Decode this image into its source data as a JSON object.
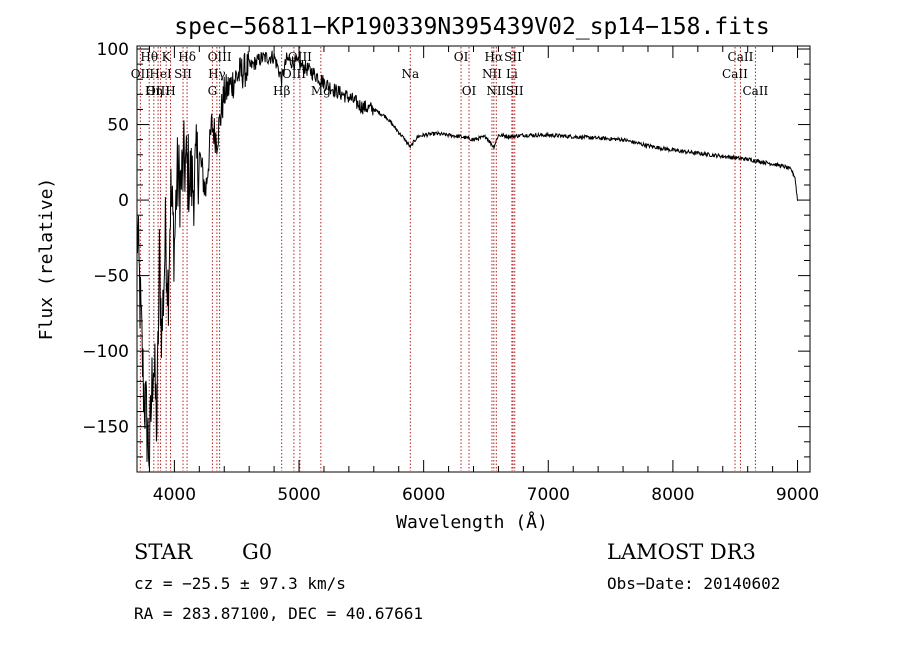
{
  "chart_data": {
    "type": "line",
    "title": "spec−56811−KP190339N395439V02_sp14−158.fits",
    "xlabel": "Wavelength (Å)",
    "ylabel": "Flux (relative)",
    "xlim": [
      3700,
      9100
    ],
    "ylim": [
      -180,
      102
    ],
    "xticks": [
      4000,
      5000,
      6000,
      7000,
      8000,
      9000
    ],
    "xtick_labels": [
      "4000",
      "5000",
      "6000",
      "7000",
      "8000",
      "9000"
    ],
    "yticks": [
      100,
      50,
      0,
      -50,
      -100,
      -150
    ],
    "ytick_labels": [
      "100",
      "50",
      "0",
      "−50",
      "−100",
      "−150"
    ],
    "grid": false,
    "series": [
      {
        "name": "flux",
        "x": [
          3700,
          3750,
          3800,
          3830,
          3860,
          3880,
          3900,
          3930,
          3950,
          3970,
          4000,
          4020,
          4050,
          4080,
          4100,
          4150,
          4200,
          4250,
          4300,
          4340,
          4400,
          4500,
          4600,
          4700,
          4800,
          4861,
          4900,
          5000,
          5100,
          5200,
          5300,
          5400,
          5500,
          5600,
          5700,
          5800,
          5850,
          5893,
          5950,
          6000,
          6100,
          6200,
          6300,
          6400,
          6500,
          6563,
          6600,
          6700,
          6800,
          7000,
          7200,
          7400,
          7600,
          7800,
          8000,
          8200,
          8400,
          8600,
          8800,
          8900,
          8950,
          8980,
          9000
        ],
        "y": [
          -15,
          -120,
          -170,
          -100,
          -150,
          -40,
          -90,
          -20,
          -60,
          5,
          -30,
          15,
          10,
          25,
          20,
          10,
          30,
          5,
          50,
          40,
          70,
          82,
          88,
          94,
          95,
          80,
          93,
          90,
          85,
          78,
          72,
          68,
          62,
          60,
          55,
          45,
          40,
          35,
          42,
          43,
          44,
          43,
          42,
          40,
          42,
          35,
          43,
          42,
          43,
          43,
          42,
          41,
          40,
          36,
          33,
          31,
          29,
          27,
          24,
          22,
          20,
          15,
          0
        ]
      }
    ],
    "line_markers": [
      {
        "label": "Hθ",
        "x": 3798,
        "row": 1
      },
      {
        "label": "OII",
        "x": 3727,
        "row": 2
      },
      {
        "label": "OIII",
        "x": 3869,
        "row": 3
      },
      {
        "label": "Hη",
        "x": 3835,
        "row": 3
      },
      {
        "label": "K",
        "x": 3934,
        "row": 1
      },
      {
        "label": "HeI",
        "x": 3889,
        "row": 2
      },
      {
        "label": "SII",
        "x": 4069,
        "row": 2
      },
      {
        "label": "H",
        "x": 3969,
        "row": 3
      },
      {
        "label": "Hδ",
        "x": 4102,
        "row": 1
      },
      {
        "label": "OIII",
        "x": 4363,
        "row": 1
      },
      {
        "label": "Hγ",
        "x": 4341,
        "row": 2
      },
      {
        "label": "G",
        "x": 4305,
        "row": 3
      },
      {
        "label": "OIII",
        "x": 5007,
        "row": 1
      },
      {
        "label": "OIII",
        "x": 4959,
        "row": 2
      },
      {
        "label": "Hβ",
        "x": 4861,
        "row": 3
      },
      {
        "label": "Mg",
        "x": 5175,
        "row": 3
      },
      {
        "label": "Na",
        "x": 5893,
        "row": 2
      },
      {
        "label": "OI",
        "x": 6300,
        "row": 1
      },
      {
        "label": "OI",
        "x": 6364,
        "row": 3
      },
      {
        "label": "Hα",
        "x": 6563,
        "row": 1
      },
      {
        "label": "SII",
        "x": 6717,
        "row": 1
      },
      {
        "label": "NII",
        "x": 6548,
        "row": 2
      },
      {
        "label": "Li",
        "x": 6708,
        "row": 2
      },
      {
        "label": "NII",
        "x": 6583,
        "row": 3
      },
      {
        "label": "SII",
        "x": 6731,
        "row": 3
      },
      {
        "label": "CaII",
        "x": 8542,
        "row": 1
      },
      {
        "label": "CaII",
        "x": 8498,
        "row": 2
      },
      {
        "label": "CaII",
        "x": 8662,
        "row": 3
      }
    ]
  },
  "info": {
    "object_class": "STAR",
    "subclass": "G0",
    "redshift": "cz = −25.5 ± 97.3 km/s",
    "coords": "RA = 283.87100, DEC =  40.67661",
    "survey": "LAMOST DR3",
    "obs_date": "Obs−Date: 20140602"
  }
}
